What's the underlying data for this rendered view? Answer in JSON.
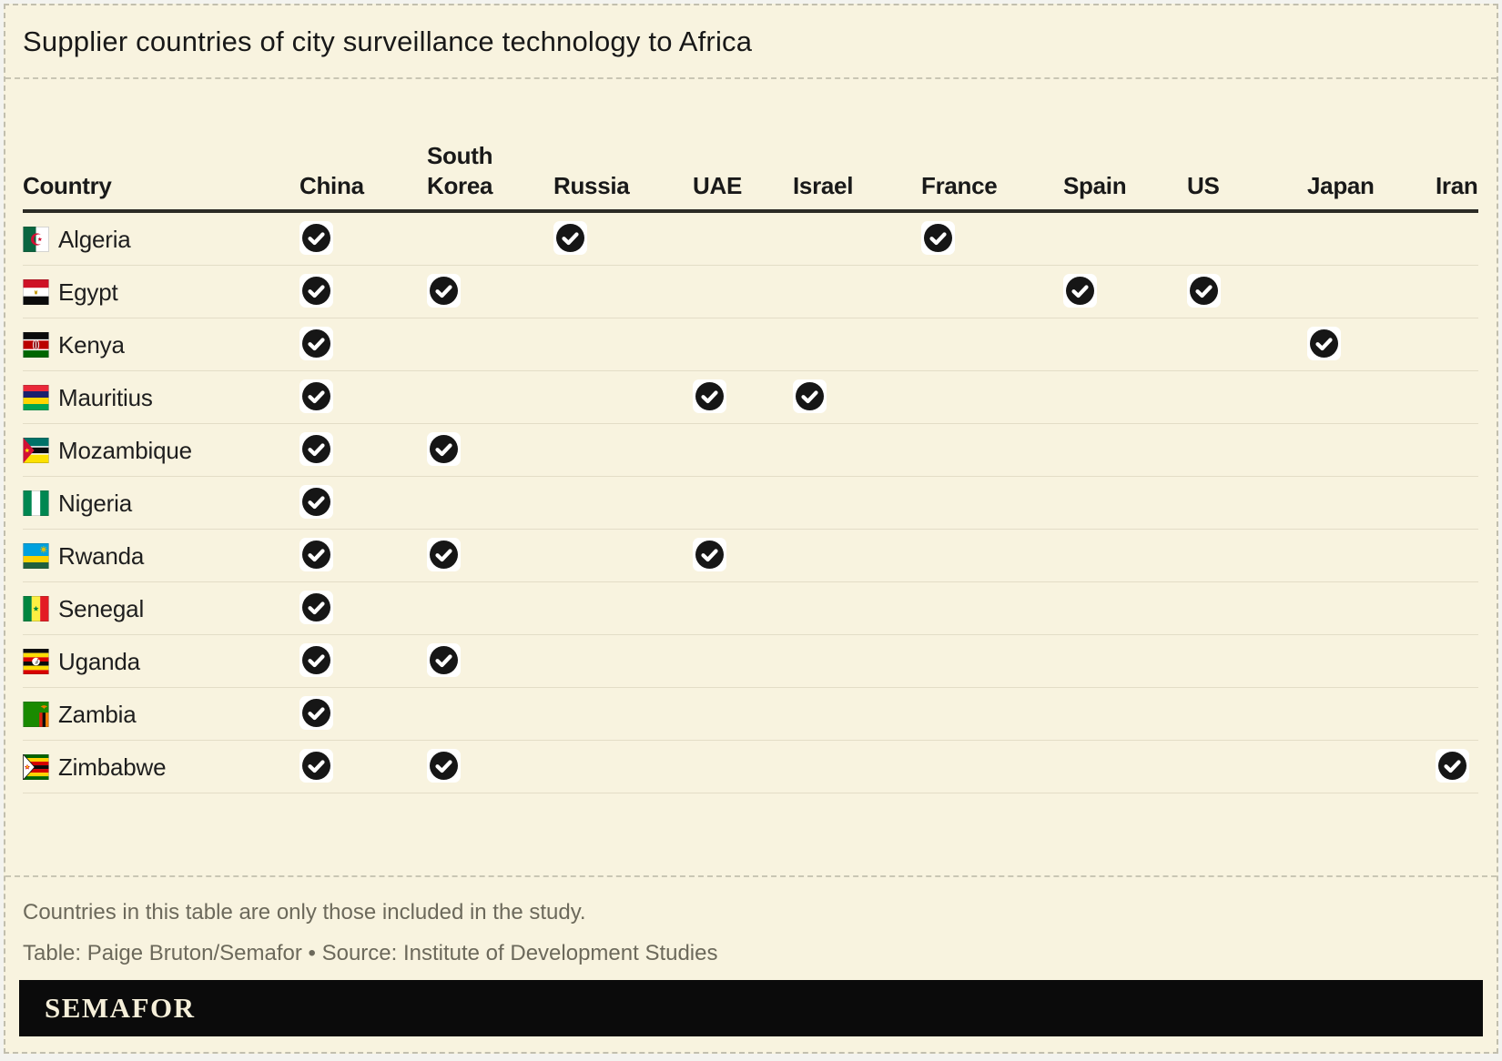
{
  "chart_data": {
    "type": "table",
    "title": "Supplier countries of city surveillance technology to Africa",
    "country_column": "Country",
    "supplier_columns": [
      "China",
      "South Korea",
      "Russia",
      "UAE",
      "Israel",
      "France",
      "Spain",
      "US",
      "Japan",
      "Iran"
    ],
    "rows": [
      {
        "country": "Algeria",
        "flag": "algeria",
        "suppliers": [
          "China",
          "Russia",
          "France"
        ]
      },
      {
        "country": "Egypt",
        "flag": "egypt",
        "suppliers": [
          "China",
          "South Korea",
          "Spain",
          "US"
        ]
      },
      {
        "country": "Kenya",
        "flag": "kenya",
        "suppliers": [
          "China",
          "Japan"
        ]
      },
      {
        "country": "Mauritius",
        "flag": "mauritius",
        "suppliers": [
          "China",
          "UAE",
          "Israel"
        ]
      },
      {
        "country": "Mozambique",
        "flag": "mozambique",
        "suppliers": [
          "China",
          "South Korea"
        ]
      },
      {
        "country": "Nigeria",
        "flag": "nigeria",
        "suppliers": [
          "China"
        ]
      },
      {
        "country": "Rwanda",
        "flag": "rwanda",
        "suppliers": [
          "China",
          "South Korea",
          "UAE"
        ]
      },
      {
        "country": "Senegal",
        "flag": "senegal",
        "suppliers": [
          "China"
        ]
      },
      {
        "country": "Uganda",
        "flag": "uganda",
        "suppliers": [
          "China",
          "South Korea"
        ]
      },
      {
        "country": "Zambia",
        "flag": "zambia",
        "suppliers": [
          "China"
        ]
      },
      {
        "country": "Zimbabwe",
        "flag": "zimbabwe",
        "suppliers": [
          "China",
          "South Korea",
          "Iran"
        ]
      }
    ],
    "check_icon": "black-circle-white-checkmark",
    "legend_position": "none",
    "grid": "horizontal-row-dividers"
  },
  "notes": {
    "footnote": "Countries in this table are only those included in the study.",
    "credit": "Table: Paige Bruton/Semafor • Source: Institute of Development Studies"
  },
  "logo": {
    "text": "SEMAFOR"
  },
  "colors": {
    "background": "#f8f3df",
    "check": "#161616",
    "header_rule": "#2c2b25",
    "row_divider": "#e3ddc7",
    "note_text": "#6c695b",
    "logo_bar": "#0b0b0b",
    "logo_text": "#f5efd9"
  }
}
